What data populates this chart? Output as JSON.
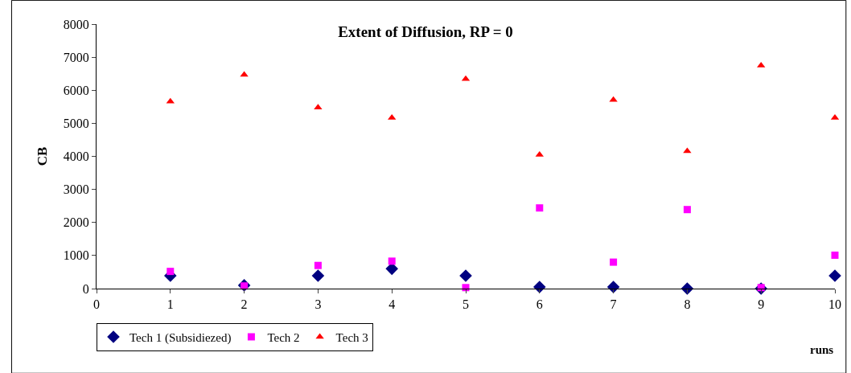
{
  "chart_data": {
    "type": "scatter",
    "title": "Extent of Diffusion, RP = 0",
    "xlabel": "runs",
    "ylabel": "CB",
    "x": [
      1,
      2,
      3,
      4,
      5,
      6,
      7,
      8,
      9,
      10
    ],
    "series": [
      {
        "name": "Tech 1 (Subsidiezed)",
        "color": "#000080",
        "marker": "diamond",
        "values": [
          390,
          100,
          390,
          600,
          390,
          50,
          50,
          0,
          0,
          390
        ]
      },
      {
        "name": "Tech 2",
        "color": "#ff00ff",
        "marker": "square",
        "values": [
          520,
          80,
          700,
          830,
          30,
          2440,
          800,
          2390,
          30,
          1010
        ]
      },
      {
        "name": "Tech 3",
        "color": "#ff0000",
        "marker": "triangle",
        "values": [
          5660,
          6470,
          5480,
          5170,
          6340,
          4050,
          5710,
          4160,
          6750,
          5170
        ]
      }
    ],
    "xlim": [
      0,
      10
    ],
    "xticks": [
      0,
      1,
      2,
      3,
      4,
      5,
      6,
      7,
      8,
      9,
      10
    ],
    "ylim": [
      0,
      8000
    ],
    "yticks": [
      0,
      1000,
      2000,
      3000,
      4000,
      5000,
      6000,
      7000,
      8000
    ],
    "legend": "bottom left"
  }
}
